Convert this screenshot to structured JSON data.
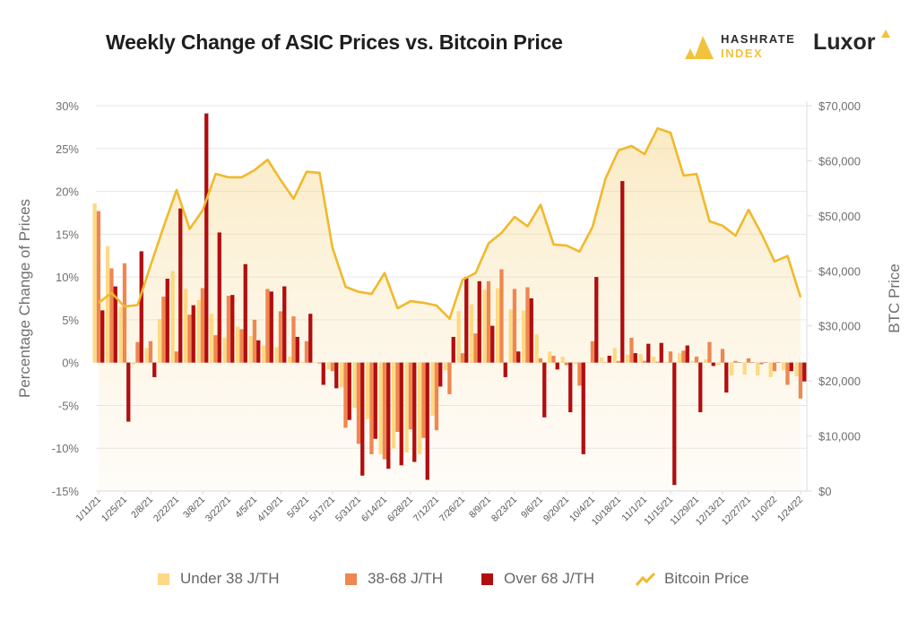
{
  "header": {
    "title": "Weekly Change of ASIC Prices vs. Bitcoin Price"
  },
  "logos": {
    "hashrate_index": [
      "HASHRATE",
      "INDEX"
    ],
    "luxor": "Luxor"
  },
  "colors": {
    "under38": "#fdd985",
    "mid": "#ee8750",
    "over68": "#b10e10",
    "btc": "#f0b92c"
  },
  "chart_data": {
    "type": "bar+line",
    "title": "Weekly Change of ASIC Prices vs. Bitcoin Price",
    "ylabel": "Percentage Change of Prices",
    "y2label": "BTC Price",
    "ylim": [
      -15,
      30
    ],
    "y2lim": [
      0,
      70000
    ],
    "yticks": [
      "30%",
      "25%",
      "20%",
      "15%",
      "10%",
      "5%",
      "0%",
      "-5%",
      "-10%",
      "-15%"
    ],
    "y2ticks": [
      "$70,000",
      "$60,000",
      "$50,000",
      "$40,000",
      "$30,000",
      "$20,000",
      "$10,000",
      "$0"
    ],
    "xtick_labels": [
      "1/11/21",
      "1/25/21",
      "2/8/21",
      "2/22/21",
      "3/8/21",
      "3/22/21",
      "4/5/21",
      "4/19/21",
      "5/3/21",
      "5/17/21",
      "5/31/21",
      "6/14/21",
      "6/28/21",
      "7/12/21",
      "7/26/21",
      "8/9/21",
      "8/23/21",
      "9/6/21",
      "9/20/21",
      "10/4/21",
      "10/18/21",
      "11/1/21",
      "11/15/21",
      "11/29/21",
      "12/13/21",
      "12/27/21",
      "1/10/22",
      "1/24/22"
    ],
    "grid": true,
    "legend": "bottom",
    "series": [
      {
        "name": "Under 38 J/TH",
        "type": "bar",
        "values": [
          18.6,
          13.6,
          6.5,
          -0.2,
          1.7,
          5.1,
          10.7,
          8.6,
          7.3,
          5.7,
          2.9,
          4.2,
          3.1,
          2.0,
          1.8,
          0.7,
          0.1,
          0,
          -0.8,
          -2.9,
          -5.3,
          -6.6,
          -10.7,
          -10.0,
          -10.5,
          -10.7,
          -6.2,
          -0.9,
          6.0,
          6.8,
          8.5,
          8.7,
          6.2,
          6.1,
          3.3,
          1.3,
          0.7,
          -0.2,
          0,
          0.6,
          1.7,
          0.9,
          1.0,
          0.7,
          0.1,
          1.1,
          0.2,
          0.4,
          -0.3,
          -1.5,
          -1.4,
          -1.5,
          -1.7,
          -0.9,
          -1.6
        ]
      },
      {
        "name": "38-68 J/TH",
        "type": "bar",
        "values": [
          17.7,
          11.0,
          11.6,
          2.4,
          2.5,
          7.7,
          1.3,
          5.6,
          8.7,
          3.2,
          7.8,
          3.9,
          5.0,
          8.6,
          6.0,
          5.4,
          2.5,
          -0.1,
          -1.0,
          -7.6,
          -9.5,
          -10.7,
          -11.3,
          -8.1,
          -7.8,
          -8.8,
          -7.9,
          -3.7,
          1.1,
          3.4,
          9.5,
          10.9,
          8.6,
          8.8,
          0.5,
          0.8,
          -0.3,
          -2.7,
          2.5,
          0,
          0.2,
          2.9,
          0.2,
          0.1,
          1.3,
          1.4,
          0.7,
          2.4,
          1.6,
          0.2,
          0.5,
          -0.2,
          -1.0,
          -2.6,
          -4.2
        ]
      },
      {
        "name": "Over 68 J/TH",
        "type": "bar",
        "values": [
          6.1,
          8.9,
          -6.9,
          13.0,
          -1.7,
          9.8,
          18.0,
          6.7,
          29.1,
          15.2,
          7.9,
          11.5,
          2.6,
          8.3,
          8.9,
          3.0,
          5.7,
          -2.6,
          -3.0,
          -6.7,
          -13.2,
          -8.9,
          -12.4,
          -12.0,
          -11.6,
          -13.7,
          -2.8,
          3.0,
          10.0,
          9.5,
          4.3,
          -1.7,
          1.3,
          7.5,
          -6.4,
          -0.8,
          -5.8,
          -10.7,
          10.0,
          0.8,
          21.2,
          1.1,
          2.2,
          2.3,
          -14.3,
          2.0,
          -5.8,
          -0.4,
          -3.5,
          0,
          0,
          0,
          0,
          -1.0,
          -2.2
        ]
      },
      {
        "name": "Bitcoin Price",
        "type": "line",
        "axis": "right",
        "values": [
          34200,
          36000,
          33500,
          33800,
          41000,
          48000,
          54700,
          47600,
          51000,
          57600,
          57000,
          57000,
          58300,
          60200,
          56500,
          53100,
          58000,
          57800,
          44100,
          37100,
          36200,
          35800,
          39600,
          33200,
          34500,
          34200,
          33700,
          31300,
          38400,
          39600,
          45000,
          46900,
          49800,
          48100,
          52000,
          44800,
          44600,
          43500,
          48000,
          56800,
          61900,
          62700,
          61200,
          65900,
          65100,
          57300,
          57600,
          49000,
          48200,
          46400,
          51100,
          46700,
          41700,
          42700,
          35200
        ]
      }
    ]
  },
  "legend": [
    {
      "label": "Under 38 J/TH",
      "icon": "square"
    },
    {
      "label": "38-68 J/TH",
      "icon": "square"
    },
    {
      "label": "Over 68 J/TH",
      "icon": "square"
    },
    {
      "label": "Bitcoin Price",
      "icon": "line"
    }
  ]
}
